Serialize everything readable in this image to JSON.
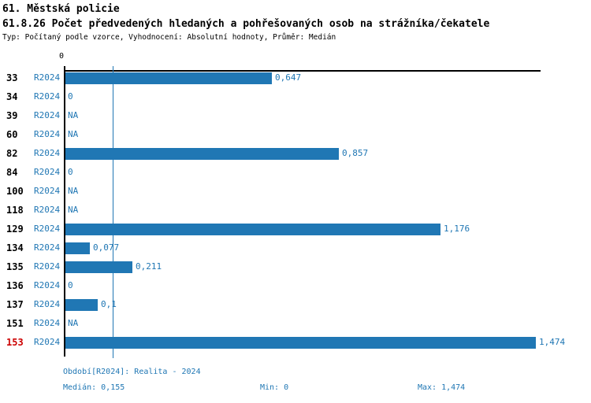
{
  "title": "61. Městská policie",
  "subtitle": "61.8.26 Počet předvedených hledaných a pohřešovaných osob na strážníka/čekatele",
  "meta": "Typ: Počítaný podle vzorce, Vyhodnocení: Absolutní hodnoty, Průměr: Medián",
  "colors": {
    "bar": "#2077b4",
    "accent_text": "#2077b4",
    "axis": "#000000",
    "highlight_row": "#cc0000"
  },
  "axis": {
    "zero_label": "0"
  },
  "chart_data": {
    "type": "bar",
    "orientation": "horizontal",
    "title": "61.8.26 Počet předvedených hledaných a pohřešovaných osob na strážníka/čekatele",
    "categories": [
      "33",
      "34",
      "39",
      "60",
      "82",
      "84",
      "100",
      "118",
      "129",
      "134",
      "135",
      "136",
      "137",
      "151",
      "153"
    ],
    "series": [
      {
        "name": "R2024",
        "values": [
          0.647,
          0,
          null,
          null,
          0.857,
          0,
          null,
          null,
          1.176,
          0.077,
          0.211,
          0,
          0.1,
          null,
          1.474
        ],
        "value_labels": [
          "0,647",
          "0",
          "NA",
          "NA",
          "0,857",
          "0",
          "NA",
          "NA",
          "1,176",
          "0,077",
          "0,211",
          "0",
          "0,1",
          "NA",
          "1,474"
        ]
      }
    ],
    "period_label": "R2024",
    "xlim": [
      0,
      1.474
    ],
    "median": 0.155,
    "highlighted_category": "153",
    "legend_position": "none",
    "grid": false
  },
  "footer": {
    "period": "Období[R2024]: Realita - 2024",
    "median": "Medián: 0,155",
    "min": "Min: 0",
    "max": "Max: 1,474"
  }
}
